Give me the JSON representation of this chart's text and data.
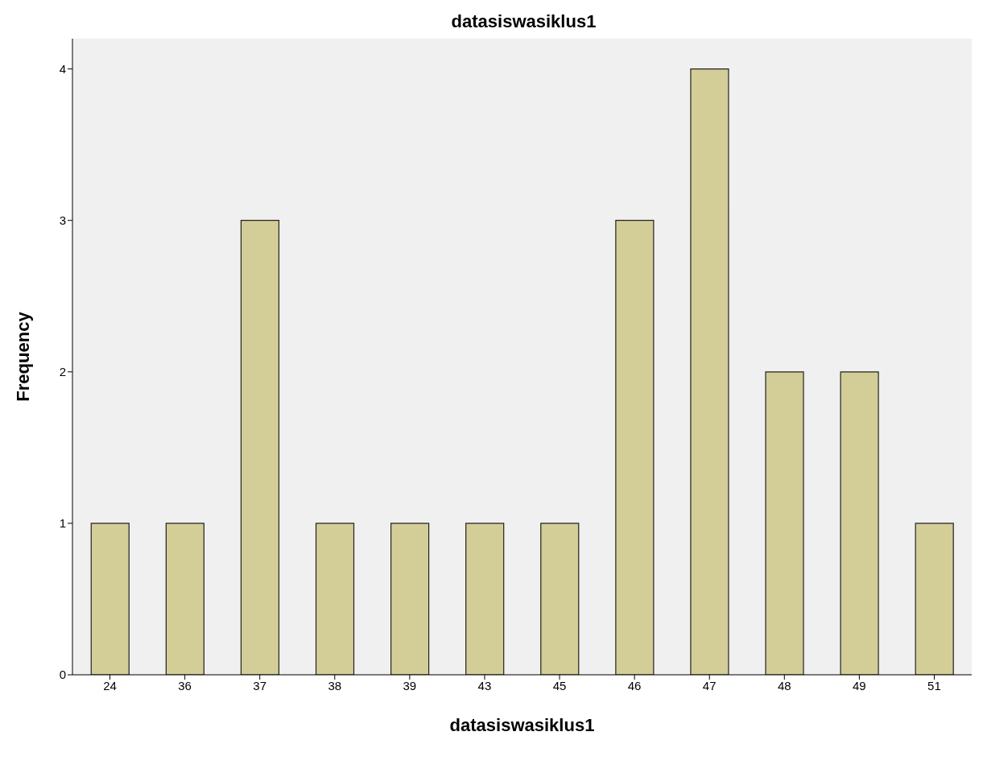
{
  "chart_data": {
    "type": "bar",
    "title": "datasiswasiklus1",
    "xlabel": "datasiswasiklus1",
    "ylabel": "Frequency",
    "categories": [
      "24",
      "36",
      "37",
      "38",
      "39",
      "43",
      "45",
      "46",
      "47",
      "48",
      "49",
      "51"
    ],
    "values": [
      1,
      1,
      3,
      1,
      1,
      1,
      1,
      3,
      4,
      2,
      2,
      1
    ],
    "color": "#d3ce97",
    "ylim": [
      0,
      4.2
    ],
    "yticks": [
      0,
      1,
      2,
      3,
      4
    ],
    "grid": false
  }
}
